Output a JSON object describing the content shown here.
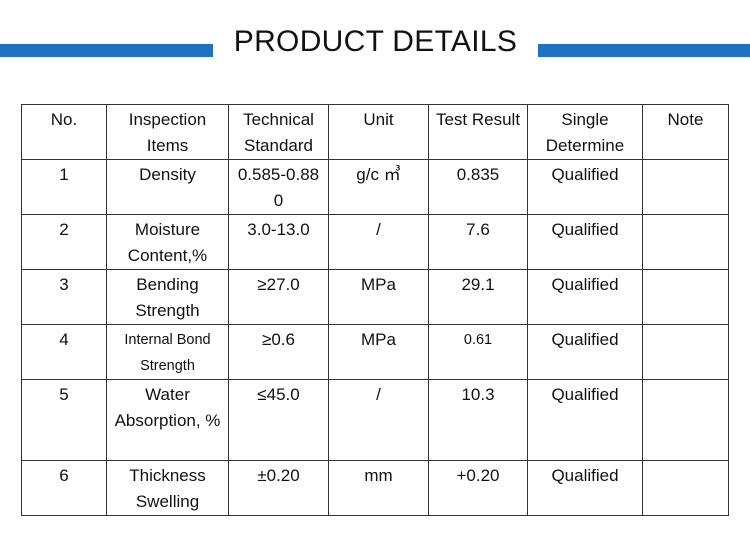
{
  "header": {
    "title": "PRODUCT DETAILS"
  },
  "table": {
    "columns": [
      "No.",
      "Inspection Items",
      "Technical Standard",
      "Unit",
      "Test Result",
      "Single Determine",
      "Note"
    ],
    "rows": [
      [
        "1",
        "Density",
        "0.585-0.880",
        "g/c ㎥",
        "0.835",
        "Qualified"
      ],
      [
        "2",
        "Moisture Content,%",
        "3.0-13.0",
        "/",
        "7.6",
        "Qualified"
      ],
      [
        "3",
        "Bending Strength",
        "≥27.0",
        "MPa",
        "29.1",
        "Qualified"
      ],
      [
        "4",
        "Internal Bond Strength",
        "≥0.6",
        "MPa",
        "0.61",
        "Qualified"
      ],
      [
        "5",
        "Water Absorption, %",
        "≤45.0",
        "/",
        "10.3",
        "Qualified"
      ],
      [
        "6",
        "Thickness Swelling",
        "±0.20",
        "mm",
        "+0.20",
        "Qualified"
      ]
    ]
  }
}
